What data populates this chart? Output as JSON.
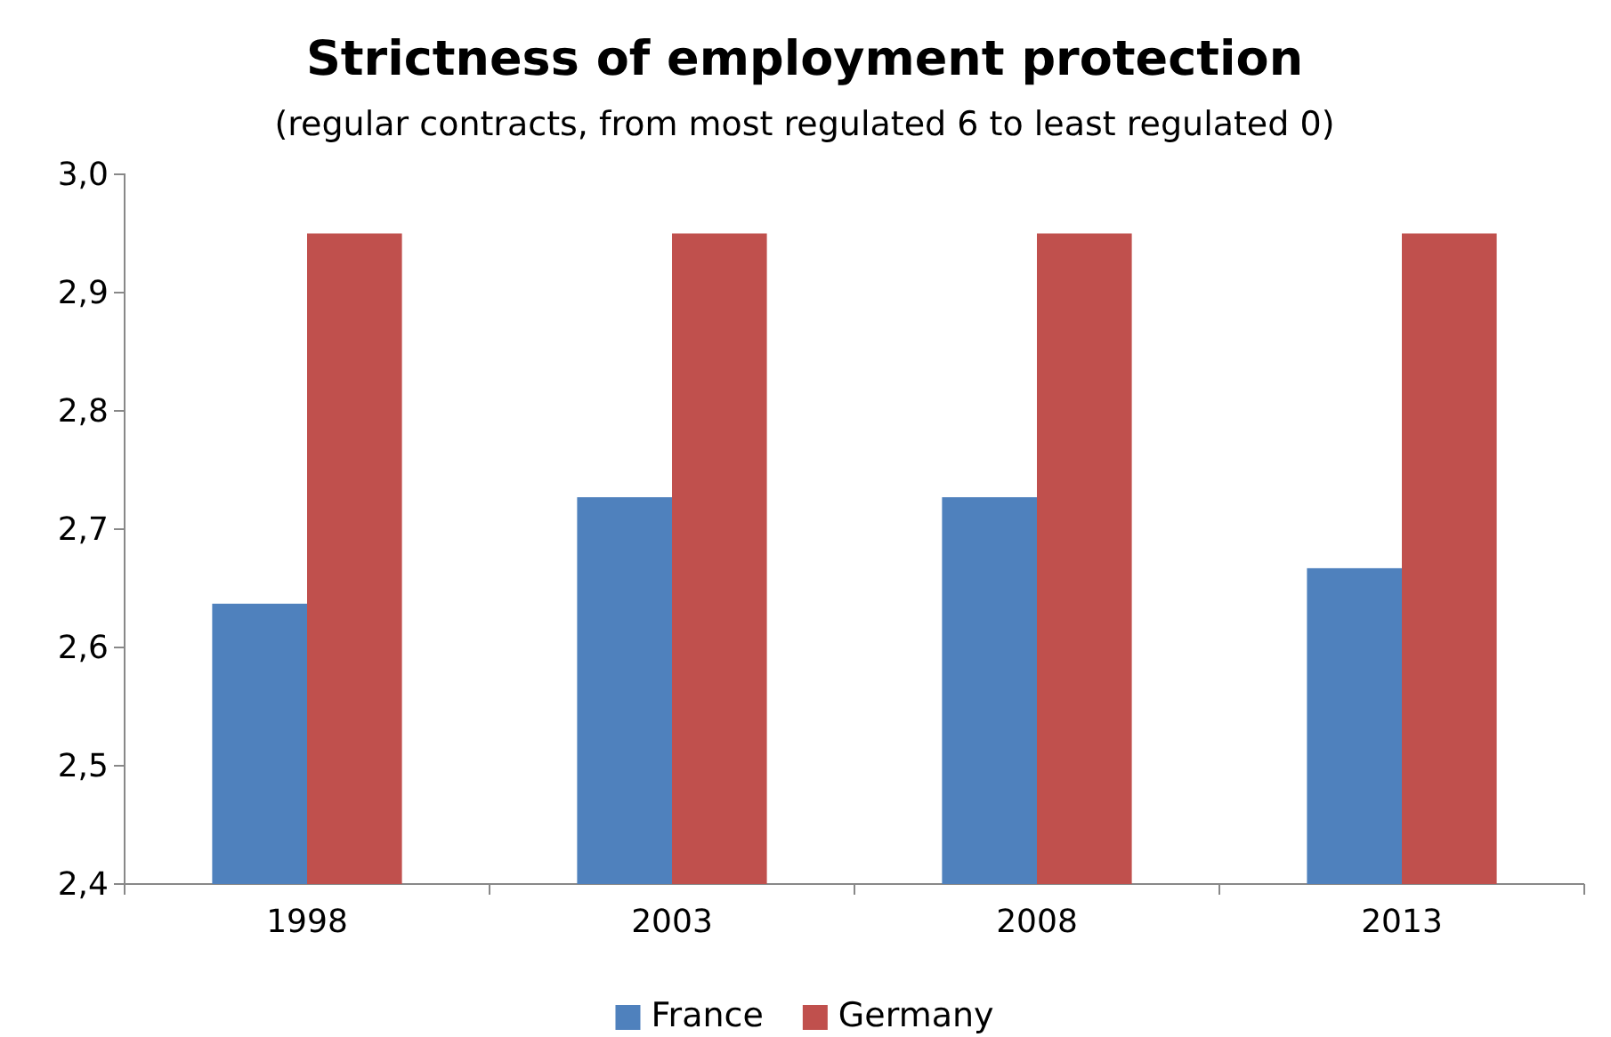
{
  "chart_data": {
    "type": "bar",
    "title": "Strictness of employment protection",
    "subtitle": "(regular contracts, from most regulated 6 to least regulated 0)",
    "categories": [
      "1998",
      "2003",
      "2008",
      "2013"
    ],
    "series": [
      {
        "name": "France",
        "color": "#4f81bd",
        "values": [
          2.637,
          2.727,
          2.727,
          2.667
        ]
      },
      {
        "name": "Germany",
        "color": "#c0504d",
        "values": [
          2.95,
          2.95,
          2.95,
          2.95
        ]
      }
    ],
    "ylim": [
      2.4,
      3.0
    ],
    "yticks": [
      {
        "value": 2.4,
        "label": "2,4"
      },
      {
        "value": 2.5,
        "label": "2,5"
      },
      {
        "value": 2.6,
        "label": "2,6"
      },
      {
        "value": 2.7,
        "label": "2,7"
      },
      {
        "value": 2.8,
        "label": "2,8"
      },
      {
        "value": 2.9,
        "label": "2,9"
      },
      {
        "value": 3.0,
        "label": "3,0"
      }
    ],
    "grid": false,
    "legend": "bottom"
  }
}
